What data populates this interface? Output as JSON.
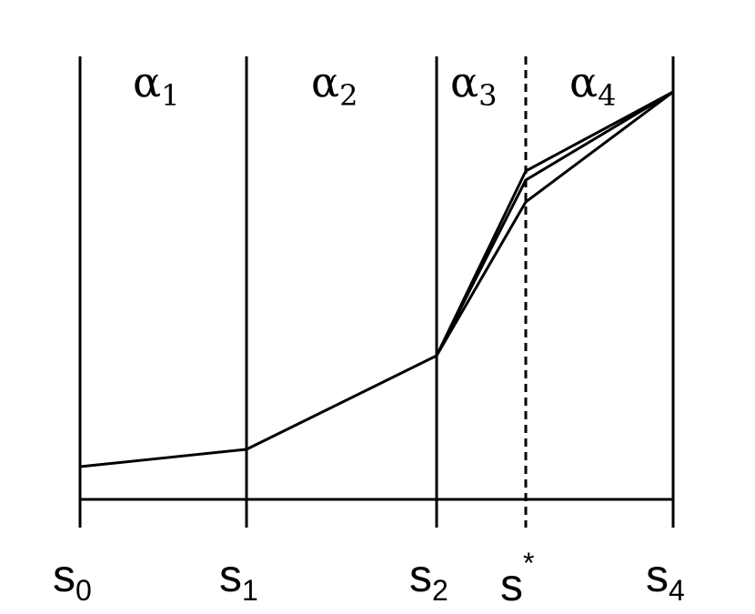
{
  "regions": [
    {
      "symbol": "α",
      "subscript": "1"
    },
    {
      "symbol": "α",
      "subscript": "2"
    },
    {
      "symbol": "α",
      "subscript": "3"
    },
    {
      "symbol": "α",
      "subscript": "4"
    }
  ],
  "axis_labels": [
    {
      "symbol": "s",
      "subscript": "0"
    },
    {
      "symbol": "s",
      "subscript": "1"
    },
    {
      "symbol": "s",
      "subscript": "2"
    },
    {
      "symbol": "s",
      "superscript": "*"
    },
    {
      "symbol": "s",
      "subscript": "4"
    }
  ]
}
